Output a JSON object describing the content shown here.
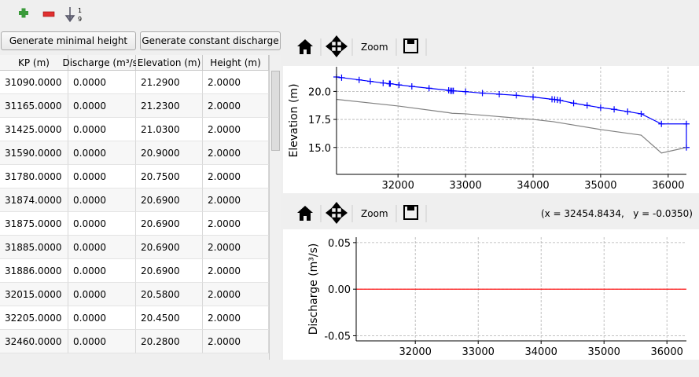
{
  "buttons": [
    "Generate minimal height",
    "Generate constant discharge"
  ],
  "table": {
    "columns": [
      "KP (m)",
      "Discharge (m³/s)",
      "Elevation (m)",
      "Height (m)"
    ],
    "rows": [
      [
        "31090.0000",
        "0.0000",
        "21.2900",
        "2.0000"
      ],
      [
        "31165.0000",
        "0.0000",
        "21.2300",
        "2.0000"
      ],
      [
        "31425.0000",
        "0.0000",
        "21.0300",
        "2.0000"
      ],
      [
        "31590.0000",
        "0.0000",
        "20.9000",
        "2.0000"
      ],
      [
        "31780.0000",
        "0.0000",
        "20.7500",
        "2.0000"
      ],
      [
        "31874.0000",
        "0.0000",
        "20.6900",
        "2.0000"
      ],
      [
        "31875.0000",
        "0.0000",
        "20.6900",
        "2.0000"
      ],
      [
        "31885.0000",
        "0.0000",
        "20.6900",
        "2.0000"
      ],
      [
        "31886.0000",
        "0.0000",
        "20.6900",
        "2.0000"
      ],
      [
        "32015.0000",
        "0.0000",
        "20.5800",
        "2.0000"
      ],
      [
        "32205.0000",
        "0.0000",
        "20.4500",
        "2.0000"
      ],
      [
        "32460.0000",
        "0.0000",
        "20.2800",
        "2.0000"
      ]
    ]
  },
  "plot_toolbars": [
    {
      "zoom": "Zoom"
    },
    {
      "zoom": "Zoom",
      "coordinates": "(x = 32454.8434,   y = -0.0350)"
    }
  ],
  "chart_data": [
    {
      "type": "line",
      "y_label": "Elevation (m)",
      "xlim": [
        31090,
        36270
      ],
      "ylim": [
        12.6,
        22.2
      ],
      "xticks": [
        32000,
        33000,
        34000,
        35000,
        36000
      ],
      "yticks": [
        {
          "value": 20,
          "label": "20.0"
        },
        17.5,
        {
          "value": 15,
          "label": "15.0"
        }
      ],
      "grid": true,
      "series": [
        {
          "color": "#0000ff",
          "marker": "+",
          "x": [
            31090,
            31165,
            31425,
            31590,
            31780,
            31874,
            31875,
            31885,
            31886,
            32015,
            32205,
            32460,
            32750,
            32780,
            32800,
            32820,
            33000,
            33250,
            33500,
            33750,
            34000,
            34280,
            34320,
            34360,
            34400,
            34600,
            34800,
            35000,
            35200,
            35400,
            35600,
            35900,
            36270,
            36270
          ],
          "values": [
            21.29,
            21.23,
            21.03,
            20.9,
            20.75,
            20.69,
            20.69,
            20.69,
            20.69,
            20.58,
            20.45,
            20.28,
            20.1,
            20.05,
            20.05,
            20.05,
            19.98,
            19.85,
            19.75,
            19.65,
            19.5,
            19.3,
            19.28,
            19.25,
            19.2,
            18.95,
            18.75,
            18.55,
            18.4,
            18.2,
            18.0,
            17.1,
            17.1,
            15.0
          ]
        },
        {
          "color": "#808080",
          "x": [
            31090,
            32000,
            32750,
            32800,
            33000,
            34000,
            34300,
            35000,
            35600,
            35900,
            36270
          ],
          "values": [
            19.29,
            18.7,
            18.1,
            18.05,
            18.0,
            17.5,
            17.3,
            16.6,
            16.1,
            14.5,
            15.0
          ]
        }
      ]
    },
    {
      "type": "line",
      "y_label": "Discharge (m³/s)",
      "xlim": [
        31060,
        36310
      ],
      "ylim": [
        -0.0555,
        0.0558
      ],
      "xticks": [
        32000,
        33000,
        34000,
        35000,
        36000
      ],
      "yticks": [
        {
          "value": 0.05,
          "label": "0.05"
        },
        {
          "value": 0,
          "label": "0.00"
        },
        {
          "value": -0.05,
          "label": "-0.05"
        }
      ],
      "grid": true,
      "series": [
        {
          "color": "#ff0000",
          "x": [
            31060,
            36310
          ],
          "values": [
            0,
            0
          ]
        }
      ]
    }
  ]
}
